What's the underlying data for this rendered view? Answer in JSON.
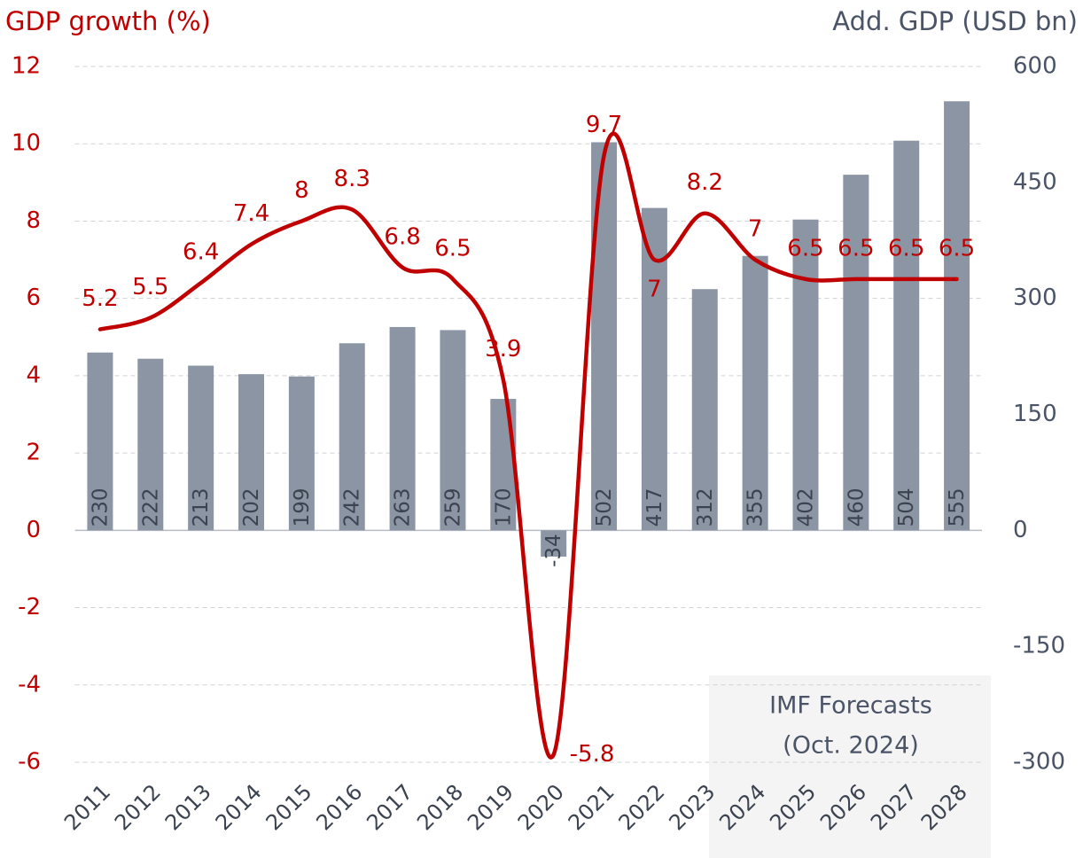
{
  "chart_data": {
    "type": "bar-line",
    "ylabel": "GDP growth (%)",
    "y2label": "Add. GDP (USD bn)",
    "annotation": [
      "IMF Forecasts",
      "(Oct. 2024)"
    ],
    "categories": [
      "2011",
      "2012",
      "2013",
      "2014",
      "2015",
      "2016",
      "2017",
      "2018",
      "2019",
      "2020",
      "2021",
      "2022",
      "2023",
      "2024",
      "2025",
      "2026",
      "2027",
      "2028"
    ],
    "series": [
      {
        "type": "bar",
        "axis": "y2",
        "color": "#8b95a4",
        "values": [
          230,
          222,
          213,
          202,
          199,
          242,
          263,
          259,
          170,
          -34,
          502,
          417,
          312,
          355,
          402,
          460,
          504,
          555
        ]
      },
      {
        "type": "line",
        "color": "#c00000",
        "values": [
          5.2,
          5.5,
          6.4,
          7.4,
          8.0,
          8.3,
          6.8,
          6.5,
          3.9,
          -5.8,
          9.7,
          7.0,
          8.2,
          7.0,
          6.5,
          6.5,
          6.5,
          6.5
        ]
      }
    ],
    "ylim": [
      -6,
      12
    ],
    "yticks": [
      -6,
      -4,
      -2,
      0,
      2,
      4,
      6,
      8,
      10,
      12
    ],
    "y2lim": [
      -300,
      600
    ],
    "y2ticks": [
      -300,
      -150,
      0,
      150,
      300,
      450,
      600
    ],
    "grid": true
  }
}
